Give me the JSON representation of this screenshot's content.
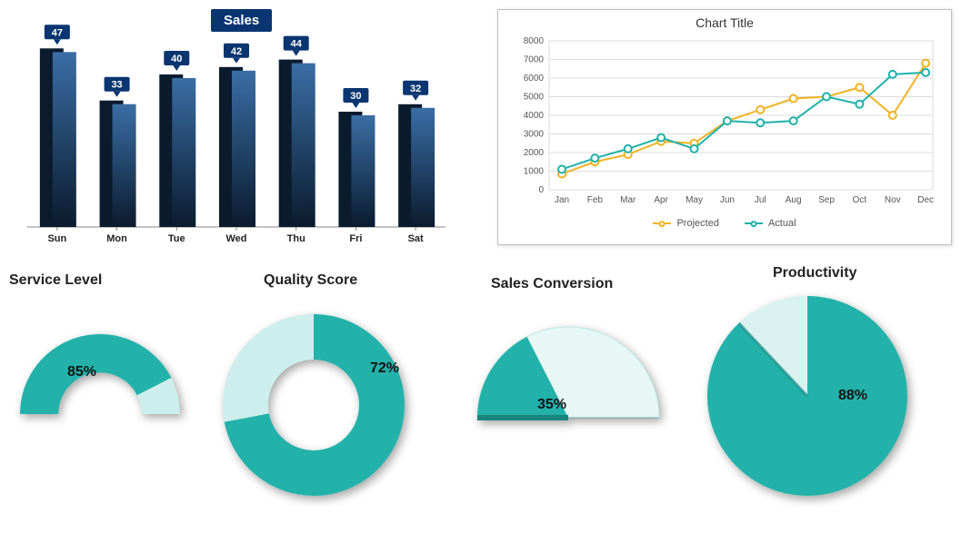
{
  "bar_chart": {
    "type": "bar",
    "title": "Sales",
    "title_bg": "#0a3570",
    "title_color": "#ffffff",
    "categories": [
      "Sun",
      "Mon",
      "Tue",
      "Wed",
      "Thu",
      "Fri",
      "Sat"
    ],
    "values": [
      47,
      33,
      40,
      42,
      44,
      30,
      32
    ],
    "max_value": 50,
    "bar_dark": "#0b1b2e",
    "bar_gradient_top": "#3a6ea5",
    "bar_gradient_bottom": "#0b1b2e",
    "badge_bg": "#0a3570",
    "badge_text": "#ffffff",
    "axis_color": "#888888",
    "label_fontsize": 11
  },
  "line_chart": {
    "type": "line",
    "title": "Chart Title",
    "border_color": "#bfbfbf",
    "background": "#ffffff",
    "grid_color": "#dcdcdc",
    "axis_text_color": "#555555",
    "x_labels": [
      "Jan",
      "Feb",
      "Mar",
      "Apr",
      "May",
      "Jun",
      "Jul",
      "Aug",
      "Sep",
      "Oct",
      "Nov",
      "Dec"
    ],
    "ymin": 0,
    "ymax": 8000,
    "ystep": 1000,
    "series": [
      {
        "name": "Projected",
        "color": "#f0b323",
        "values": [
          850,
          1500,
          1900,
          2600,
          2500,
          3700,
          4300,
          4900,
          5000,
          5500,
          4000,
          6800
        ]
      },
      {
        "name": "Actual",
        "color": "#1eb2aa",
        "values": [
          1100,
          1700,
          2200,
          2800,
          2200,
          3700,
          3600,
          3700,
          5000,
          4600,
          6200,
          6300
        ]
      }
    ],
    "marker_fill": "#ffffff",
    "marker_radius": 4,
    "line_width": 2
  },
  "metrics": {
    "service_level": {
      "title": "Service Level",
      "type": "half-donut",
      "pct": 85,
      "pct_text": "85%",
      "fill_color": "#22b2aa",
      "empty_color": "#cdeeec",
      "inner_ratio": 0.52
    },
    "quality_score": {
      "title": "Quality Score",
      "type": "donut",
      "pct": 72,
      "pct_text": "72%",
      "fill_color": "#22b2aa",
      "empty_color": "#cdeeec",
      "inner_ratio": 0.5
    },
    "sales_conversion": {
      "title": "Sales Conversion",
      "type": "half-pie",
      "pct": 35,
      "pct_text": "35%",
      "fill_color": "#22b2aa",
      "dark_edge": "#19847e",
      "empty_color": "#e6f7f5"
    },
    "productivity": {
      "title": "Productivity",
      "type": "pie",
      "pct": 88,
      "pct_text": "88%",
      "fill_color": "#22b2aa",
      "empty_color": "#d9f2f0",
      "dark_edge": "#19847e"
    }
  }
}
